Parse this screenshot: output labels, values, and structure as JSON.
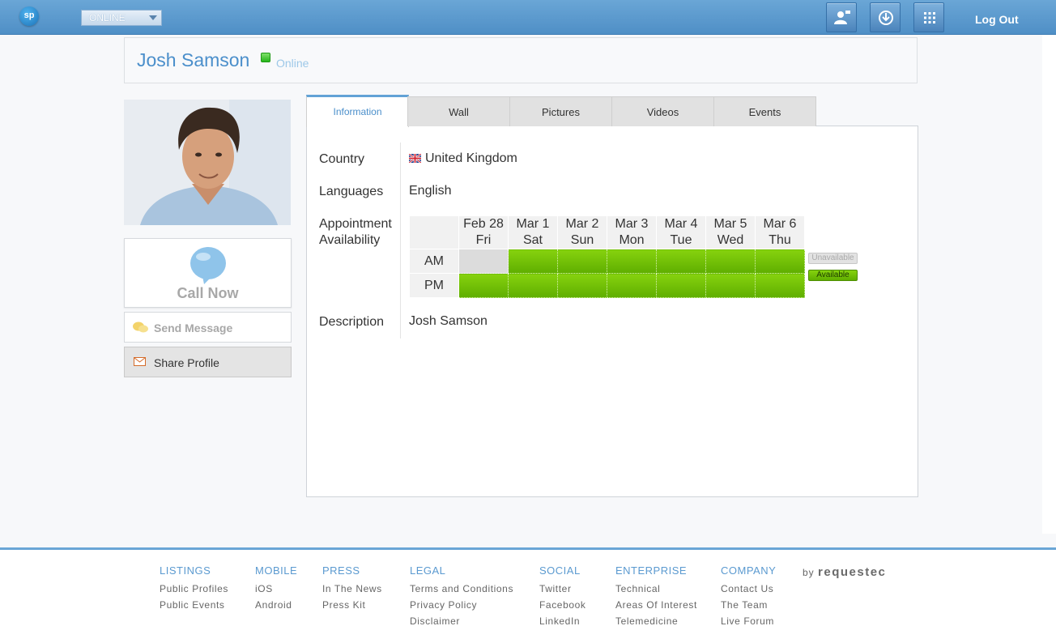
{
  "topbar": {
    "logo_text": "sp",
    "status_value": "ONLINE",
    "logout_label": "Log Out",
    "icons": [
      "user-card-icon",
      "download-icon",
      "apps-grid-icon"
    ]
  },
  "profile": {
    "name": "Josh Samson",
    "status": "Online",
    "status_color": "#27b51b"
  },
  "actions": {
    "call_now": "Call Now",
    "send_message": "Send Message",
    "share_profile": "Share Profile"
  },
  "tabs": [
    {
      "label": "Information",
      "active": true
    },
    {
      "label": "Wall",
      "active": false
    },
    {
      "label": "Pictures",
      "active": false
    },
    {
      "label": "Videos",
      "active": false
    },
    {
      "label": "Events",
      "active": false
    }
  ],
  "info": {
    "country_label": "Country",
    "country_value": "United Kingdom",
    "languages_label": "Languages",
    "languages_value": "English",
    "availability_label_1": "Appointment",
    "availability_label_2": "Availability",
    "description_label": "Description",
    "description_value": "Josh Samson"
  },
  "availability": {
    "days": [
      {
        "date": "Feb 28",
        "day": "Fri",
        "am": "Unavailable",
        "pm": "Available"
      },
      {
        "date": "Mar 1",
        "day": "Sat",
        "am": "Available",
        "pm": "Available"
      },
      {
        "date": "Mar 2",
        "day": "Sun",
        "am": "Available",
        "pm": "Available"
      },
      {
        "date": "Mar 3",
        "day": "Mon",
        "am": "Available",
        "pm": "Available"
      },
      {
        "date": "Mar 4",
        "day": "Tue",
        "am": "Available",
        "pm": "Available"
      },
      {
        "date": "Mar 5",
        "day": "Wed",
        "am": "Available",
        "pm": "Available"
      },
      {
        "date": "Mar 6",
        "day": "Thu",
        "am": "Available",
        "pm": "Available"
      }
    ],
    "am_label": "AM",
    "pm_label": "PM",
    "legend_unavailable": "Unavailable",
    "legend_available": "Available",
    "available_color": "#6cbf05",
    "unavailable_color": "#dcdcdc"
  },
  "footer": {
    "columns": [
      {
        "heading": "LISTINGS",
        "links": [
          "Public Profiles",
          "Public Events"
        ]
      },
      {
        "heading": "MOBILE",
        "links": [
          "iOS",
          "Android"
        ]
      },
      {
        "heading": "PRESS",
        "links": [
          "In The News",
          "Press Kit"
        ]
      },
      {
        "heading": "LEGAL",
        "links": [
          "Terms and Conditions",
          "Privacy Policy",
          "Disclaimer"
        ]
      },
      {
        "heading": "SOCIAL",
        "links": [
          "Twitter",
          "Facebook",
          "LinkedIn"
        ]
      },
      {
        "heading": "ENTERPRISE",
        "links": [
          "Technical",
          "Areas Of Interest",
          "Telemedicine"
        ]
      },
      {
        "heading": "COMPANY",
        "links": [
          "Contact Us",
          "The Team",
          "Live Forum"
        ]
      }
    ],
    "by_label": "by",
    "brand": "requestec"
  }
}
